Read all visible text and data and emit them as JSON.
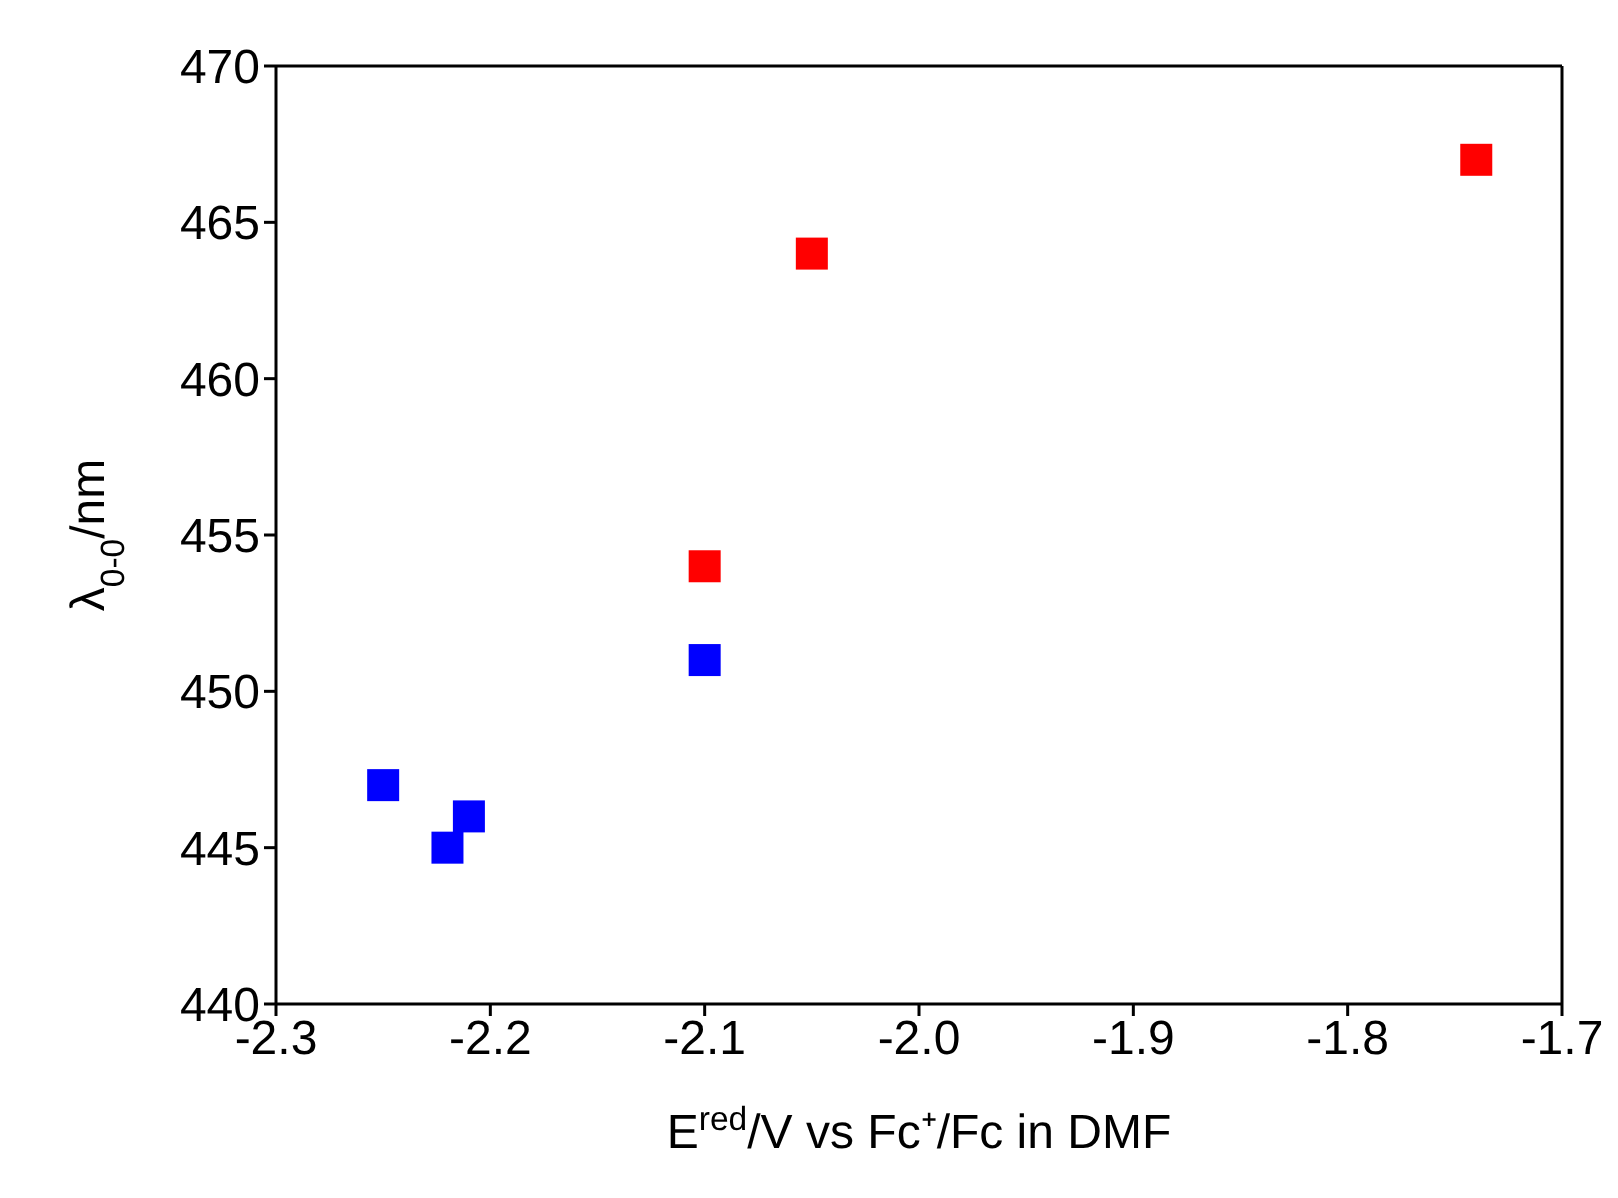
{
  "chart_data": {
    "type": "scatter",
    "xlabel": "E$^{red}$/V vs Fc⁺/Fc in DMF",
    "ylabel": "λ$_{0-0}$/nm",
    "marker": "square",
    "xlim": [
      -2.3,
      -1.7
    ],
    "xticks": [
      {
        "value": -2.3,
        "label": "-2.3"
      },
      {
        "value": -2.2,
        "label": "-2.2"
      },
      {
        "value": -2.1,
        "label": "-2.1"
      },
      {
        "value": -2.0,
        "label": "-2.0"
      },
      {
        "value": -1.9,
        "label": "-1.9"
      },
      {
        "value": -1.8,
        "label": "-1.8"
      },
      {
        "value": -1.7,
        "label": "-1.7"
      }
    ],
    "ylim": [
      440,
      470
    ],
    "yticks": [
      440,
      445,
      450,
      455,
      460,
      465,
      470
    ],
    "series": [
      {
        "color": "#0000ff",
        "x": [
          -2.25,
          -2.22,
          -2.21,
          -2.1
        ],
        "values": [
          447,
          445,
          446,
          451
        ]
      },
      {
        "color": "#ff0000",
        "x": [
          -2.1,
          -2.05,
          -1.74
        ],
        "values": [
          454,
          464,
          467
        ]
      }
    ]
  }
}
